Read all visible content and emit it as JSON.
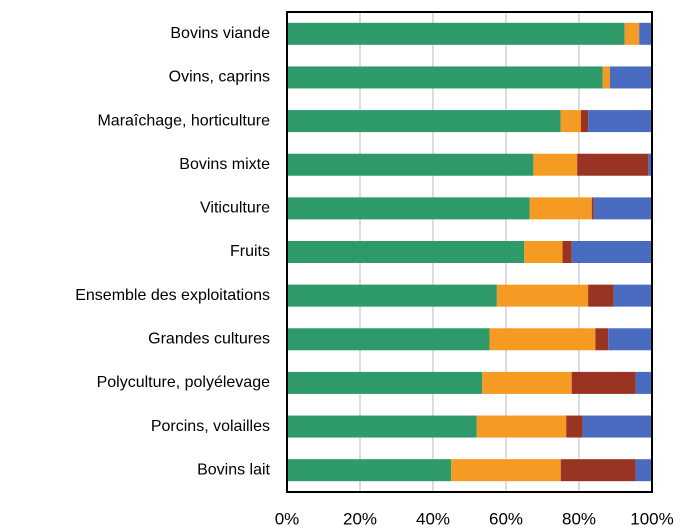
{
  "chart_data": {
    "type": "stacked_bar_horizontal",
    "categories": [
      "Bovins viande",
      "Ovins, caprins",
      "Maraîchage, horticulture",
      "Bovins mixte",
      "Viticulture",
      "Fruits",
      "Ensemble des exploitations",
      "Grandes cultures",
      "Polyculture, polyélevage",
      "Porcins, volailles",
      "Bovins lait"
    ],
    "series": [
      {
        "color": "#2e9a6a",
        "values": [
          92.5,
          86.5,
          75,
          67.5,
          66.5,
          65,
          57.5,
          55.5,
          53.5,
          52,
          45
        ]
      },
      {
        "color": "#f59a23",
        "values": [
          4,
          2,
          5.5,
          12,
          17,
          10.5,
          25,
          29,
          24.5,
          24.5,
          30
        ]
      },
      {
        "color": "#993322",
        "values": [
          0,
          0,
          2,
          19.5,
          0.5,
          2.5,
          7,
          3.5,
          17.5,
          4.5,
          20.5
        ]
      },
      {
        "color": "#4a6cc0",
        "values": [
          3.5,
          11.5,
          17.5,
          1,
          16,
          22,
          10.5,
          12,
          4.5,
          19,
          4.5
        ]
      }
    ],
    "xlim": [
      0,
      100
    ],
    "xticks": [
      {
        "value": 0,
        "label": "0%"
      },
      {
        "value": 20,
        "label": "20%"
      },
      {
        "value": 40,
        "label": "40%"
      },
      {
        "value": 60,
        "label": "60%"
      },
      {
        "value": 80,
        "label": "80%"
      },
      {
        "value": 100,
        "label": "100%"
      }
    ],
    "grid": true
  }
}
